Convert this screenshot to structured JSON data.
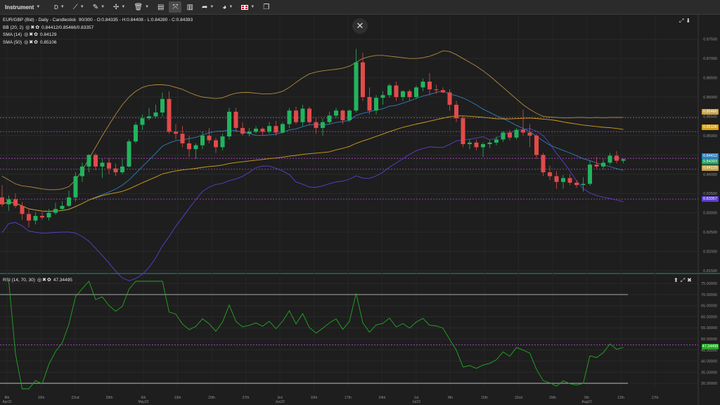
{
  "toolbar": {
    "instrument_label": "Instrument",
    "timeframe_label": "D"
  },
  "legend": {
    "main_title": "EUR/GBP (Bid) - Daily - Candlestick",
    "main_values": "90/300 - O:0.84335 - H:0.84408 - L:0.84280 - C:0.84393",
    "bb_label": "BB (20, 2)",
    "bb_values": "0.84412/0.85466/0.83357",
    "sma14_label": "SMA (14)",
    "sma14_value": "0.84129",
    "sma50_label": "SMA (50)",
    "sma50_value": "0.85106",
    "rsi_label": "RSI (14, 70, 30)",
    "rsi_value": "47.34495"
  },
  "price_tags": [
    {
      "value": "0.85466",
      "color": "#c7a24a"
    },
    {
      "value": "0.85106",
      "color": "#d4a017"
    },
    {
      "value": "0.84412",
      "color": "#2f7fbf"
    },
    {
      "value": "0.84393",
      "color": "#1e9e5a"
    },
    {
      "value": "0.84129",
      "color": "#c7a24a"
    },
    {
      "value": "0.83357",
      "color": "#5b3fd0"
    },
    {
      "value": "47.34495",
      "color": "#22aa22"
    }
  ],
  "price_axis_labels": [
    "0.87500",
    "0.87000",
    "0.86500",
    "0.86000",
    "0.85500",
    "0.85000",
    "0.84500",
    "0.84000",
    "0.83500",
    "0.83000",
    "0.82500",
    "0.82000",
    "0.81500"
  ],
  "rsi_axis_labels": [
    "75.00000",
    "70.00000",
    "65.00000",
    "60.00000",
    "55.00000",
    "50.00000",
    "45.00000",
    "40.00000",
    "35.00000",
    "30.00000"
  ],
  "x_axis_labels": [
    {
      "text": "8th",
      "sub": "Apr22"
    },
    {
      "text": "15th",
      "sub": ""
    },
    {
      "text": "22nd",
      "sub": ""
    },
    {
      "text": "29th",
      "sub": ""
    },
    {
      "text": "6th",
      "sub": "May22"
    },
    {
      "text": "13th",
      "sub": ""
    },
    {
      "text": "20th",
      "sub": ""
    },
    {
      "text": "27th",
      "sub": ""
    },
    {
      "text": "3rd",
      "sub": "Jun22"
    },
    {
      "text": "10th",
      "sub": ""
    },
    {
      "text": "17th",
      "sub": ""
    },
    {
      "text": "24th",
      "sub": ""
    },
    {
      "text": "1st",
      "sub": "Jul22"
    },
    {
      "text": "8th",
      "sub": ""
    },
    {
      "text": "15th",
      "sub": ""
    },
    {
      "text": "22nd",
      "sub": ""
    },
    {
      "text": "29th",
      "sub": ""
    },
    {
      "text": "5th",
      "sub": "Aug22"
    },
    {
      "text": "12th",
      "sub": ""
    },
    {
      "text": "17th",
      "sub": ""
    }
  ],
  "chart_data": {
    "type": "candlestick",
    "price_range": [
      0.815,
      0.8775
    ],
    "rsi_range": [
      27.5,
      76
    ],
    "horizontal_levels": [
      0.85466,
      0.85106,
      0.84412,
      0.84129,
      0.83357
    ],
    "rsi_levels": [
      70,
      30,
      47.3
    ],
    "candles": [
      {
        "o": 0.834,
        "h": 0.8372,
        "l": 0.8316,
        "c": 0.8322
      },
      {
        "o": 0.8322,
        "h": 0.8345,
        "l": 0.8305,
        "c": 0.8335
      },
      {
        "o": 0.8335,
        "h": 0.835,
        "l": 0.8312,
        "c": 0.8318
      },
      {
        "o": 0.8318,
        "h": 0.8328,
        "l": 0.8282,
        "c": 0.8297
      },
      {
        "o": 0.8297,
        "h": 0.831,
        "l": 0.8262,
        "c": 0.828
      },
      {
        "o": 0.828,
        "h": 0.8302,
        "l": 0.827,
        "c": 0.8292
      },
      {
        "o": 0.8292,
        "h": 0.8302,
        "l": 0.8282,
        "c": 0.8288
      },
      {
        "o": 0.8288,
        "h": 0.831,
        "l": 0.828,
        "c": 0.83
      },
      {
        "o": 0.83,
        "h": 0.8326,
        "l": 0.8295,
        "c": 0.831
      },
      {
        "o": 0.831,
        "h": 0.833,
        "l": 0.8305,
        "c": 0.8318
      },
      {
        "o": 0.8318,
        "h": 0.8358,
        "l": 0.8315,
        "c": 0.834
      },
      {
        "o": 0.834,
        "h": 0.8405,
        "l": 0.833,
        "c": 0.8395
      },
      {
        "o": 0.8395,
        "h": 0.843,
        "l": 0.838,
        "c": 0.842
      },
      {
        "o": 0.842,
        "h": 0.8452,
        "l": 0.8405,
        "c": 0.845
      },
      {
        "o": 0.845,
        "h": 0.8455,
        "l": 0.841,
        "c": 0.842
      },
      {
        "o": 0.842,
        "h": 0.844,
        "l": 0.839,
        "c": 0.843
      },
      {
        "o": 0.843,
        "h": 0.8442,
        "l": 0.84,
        "c": 0.8415
      },
      {
        "o": 0.8415,
        "h": 0.8428,
        "l": 0.8395,
        "c": 0.8405
      },
      {
        "o": 0.8405,
        "h": 0.844,
        "l": 0.84,
        "c": 0.842
      },
      {
        "o": 0.842,
        "h": 0.849,
        "l": 0.8418,
        "c": 0.8485
      },
      {
        "o": 0.8485,
        "h": 0.8535,
        "l": 0.848,
        "c": 0.8528
      },
      {
        "o": 0.8528,
        "h": 0.8555,
        "l": 0.8515,
        "c": 0.8545
      },
      {
        "o": 0.8545,
        "h": 0.8572,
        "l": 0.854,
        "c": 0.855
      },
      {
        "o": 0.855,
        "h": 0.858,
        "l": 0.8545,
        "c": 0.856
      },
      {
        "o": 0.856,
        "h": 0.8612,
        "l": 0.855,
        "c": 0.8595
      },
      {
        "o": 0.8595,
        "h": 0.8615,
        "l": 0.8505,
        "c": 0.851
      },
      {
        "o": 0.851,
        "h": 0.853,
        "l": 0.849,
        "c": 0.8505
      },
      {
        "o": 0.8505,
        "h": 0.8525,
        "l": 0.847,
        "c": 0.848
      },
      {
        "o": 0.848,
        "h": 0.85,
        "l": 0.8445,
        "c": 0.8465
      },
      {
        "o": 0.8465,
        "h": 0.848,
        "l": 0.844,
        "c": 0.8475
      },
      {
        "o": 0.8475,
        "h": 0.851,
        "l": 0.8465,
        "c": 0.85
      },
      {
        "o": 0.85,
        "h": 0.852,
        "l": 0.848,
        "c": 0.8488
      },
      {
        "o": 0.8488,
        "h": 0.8495,
        "l": 0.8455,
        "c": 0.847
      },
      {
        "o": 0.847,
        "h": 0.8505,
        "l": 0.8462,
        "c": 0.8498
      },
      {
        "o": 0.8498,
        "h": 0.8572,
        "l": 0.849,
        "c": 0.8562
      },
      {
        "o": 0.8562,
        "h": 0.8572,
        "l": 0.851,
        "c": 0.852
      },
      {
        "o": 0.852,
        "h": 0.8535,
        "l": 0.85,
        "c": 0.8505
      },
      {
        "o": 0.8505,
        "h": 0.852,
        "l": 0.8498,
        "c": 0.851
      },
      {
        "o": 0.851,
        "h": 0.8525,
        "l": 0.8505,
        "c": 0.8518
      },
      {
        "o": 0.8518,
        "h": 0.8522,
        "l": 0.8502,
        "c": 0.851
      },
      {
        "o": 0.851,
        "h": 0.8535,
        "l": 0.8505,
        "c": 0.8525
      },
      {
        "o": 0.8525,
        "h": 0.8538,
        "l": 0.85,
        "c": 0.8508
      },
      {
        "o": 0.8508,
        "h": 0.8535,
        "l": 0.8505,
        "c": 0.853
      },
      {
        "o": 0.853,
        "h": 0.8572,
        "l": 0.852,
        "c": 0.8565
      },
      {
        "o": 0.8565,
        "h": 0.8575,
        "l": 0.853,
        "c": 0.8535
      },
      {
        "o": 0.8535,
        "h": 0.858,
        "l": 0.8525,
        "c": 0.857
      },
      {
        "o": 0.857,
        "h": 0.8575,
        "l": 0.8528,
        "c": 0.8535
      },
      {
        "o": 0.8535,
        "h": 0.8545,
        "l": 0.8505,
        "c": 0.852
      },
      {
        "o": 0.852,
        "h": 0.8545,
        "l": 0.85,
        "c": 0.8535
      },
      {
        "o": 0.8535,
        "h": 0.8562,
        "l": 0.853,
        "c": 0.8552
      },
      {
        "o": 0.8552,
        "h": 0.8572,
        "l": 0.8545,
        "c": 0.8565
      },
      {
        "o": 0.8565,
        "h": 0.8568,
        "l": 0.853,
        "c": 0.854
      },
      {
        "o": 0.854,
        "h": 0.8568,
        "l": 0.8535,
        "c": 0.8565
      },
      {
        "o": 0.8565,
        "h": 0.8725,
        "l": 0.856,
        "c": 0.869
      },
      {
        "o": 0.869,
        "h": 0.8715,
        "l": 0.859,
        "c": 0.86
      },
      {
        "o": 0.86,
        "h": 0.8625,
        "l": 0.8555,
        "c": 0.8565
      },
      {
        "o": 0.8565,
        "h": 0.8605,
        "l": 0.8555,
        "c": 0.8598
      },
      {
        "o": 0.8598,
        "h": 0.8615,
        "l": 0.858,
        "c": 0.8605
      },
      {
        "o": 0.8605,
        "h": 0.8635,
        "l": 0.8598,
        "c": 0.863
      },
      {
        "o": 0.863,
        "h": 0.864,
        "l": 0.859,
        "c": 0.86
      },
      {
        "o": 0.86,
        "h": 0.8618,
        "l": 0.859,
        "c": 0.8615
      },
      {
        "o": 0.8615,
        "h": 0.862,
        "l": 0.859,
        "c": 0.86
      },
      {
        "o": 0.86,
        "h": 0.863,
        "l": 0.8595,
        "c": 0.8625
      },
      {
        "o": 0.8625,
        "h": 0.8648,
        "l": 0.8615,
        "c": 0.864
      },
      {
        "o": 0.864,
        "h": 0.8662,
        "l": 0.8605,
        "c": 0.862
      },
      {
        "o": 0.862,
        "h": 0.8632,
        "l": 0.8608,
        "c": 0.8618
      },
      {
        "o": 0.8618,
        "h": 0.8625,
        "l": 0.861,
        "c": 0.8612
      },
      {
        "o": 0.8612,
        "h": 0.862,
        "l": 0.8565,
        "c": 0.858
      },
      {
        "o": 0.858,
        "h": 0.859,
        "l": 0.8535,
        "c": 0.8545
      },
      {
        "o": 0.8545,
        "h": 0.855,
        "l": 0.847,
        "c": 0.8478
      },
      {
        "o": 0.8478,
        "h": 0.849,
        "l": 0.8465,
        "c": 0.8482
      },
      {
        "o": 0.8482,
        "h": 0.849,
        "l": 0.8462,
        "c": 0.847
      },
      {
        "o": 0.847,
        "h": 0.8482,
        "l": 0.8445,
        "c": 0.8478
      },
      {
        "o": 0.8478,
        "h": 0.8488,
        "l": 0.8468,
        "c": 0.8482
      },
      {
        "o": 0.8482,
        "h": 0.8498,
        "l": 0.8475,
        "c": 0.849
      },
      {
        "o": 0.849,
        "h": 0.8512,
        "l": 0.8484,
        "c": 0.8508
      },
      {
        "o": 0.8508,
        "h": 0.8515,
        "l": 0.8488,
        "c": 0.8495
      },
      {
        "o": 0.8495,
        "h": 0.852,
        "l": 0.849,
        "c": 0.8515
      },
      {
        "o": 0.8515,
        "h": 0.8568,
        "l": 0.85,
        "c": 0.8508
      },
      {
        "o": 0.8508,
        "h": 0.853,
        "l": 0.847,
        "c": 0.85
      },
      {
        "o": 0.85,
        "h": 0.8505,
        "l": 0.844,
        "c": 0.845
      },
      {
        "o": 0.845,
        "h": 0.8455,
        "l": 0.8395,
        "c": 0.8405
      },
      {
        "o": 0.8405,
        "h": 0.8422,
        "l": 0.8385,
        "c": 0.8395
      },
      {
        "o": 0.8395,
        "h": 0.8408,
        "l": 0.8362,
        "c": 0.838
      },
      {
        "o": 0.838,
        "h": 0.8398,
        "l": 0.8362,
        "c": 0.839
      },
      {
        "o": 0.839,
        "h": 0.84,
        "l": 0.8372,
        "c": 0.8378
      },
      {
        "o": 0.8378,
        "h": 0.8385,
        "l": 0.8365,
        "c": 0.8372
      },
      {
        "o": 0.8372,
        "h": 0.8392,
        "l": 0.8355,
        "c": 0.8375
      },
      {
        "o": 0.8375,
        "h": 0.8435,
        "l": 0.837,
        "c": 0.8425
      },
      {
        "o": 0.8425,
        "h": 0.8445,
        "l": 0.8415,
        "c": 0.842
      },
      {
        "o": 0.842,
        "h": 0.844,
        "l": 0.8412,
        "c": 0.843
      },
      {
        "o": 0.843,
        "h": 0.8455,
        "l": 0.8425,
        "c": 0.8448
      },
      {
        "o": 0.8448,
        "h": 0.846,
        "l": 0.8428,
        "c": 0.8435
      },
      {
        "o": 0.8435,
        "h": 0.8441,
        "l": 0.8428,
        "c": 0.8439
      }
    ],
    "bb_upper": [
      0.8395,
      0.8385,
      0.8375,
      0.837,
      0.8368,
      0.8365,
      0.8362,
      0.836,
      0.836,
      0.8362,
      0.8368,
      0.8385,
      0.841,
      0.844,
      0.847,
      0.85,
      0.8528,
      0.8555,
      0.858,
      0.86,
      0.8615,
      0.8625,
      0.863,
      0.8632,
      0.8632,
      0.863,
      0.8625,
      0.862,
      0.8612,
      0.8605,
      0.86,
      0.8598,
      0.8596,
      0.8598,
      0.8605,
      0.861,
      0.8612,
      0.8612,
      0.861,
      0.8608,
      0.8608,
      0.861,
      0.8615,
      0.8625,
      0.8638,
      0.865,
      0.866,
      0.8665,
      0.8668,
      0.867,
      0.8672,
      0.8675,
      0.868,
      0.869,
      0.87,
      0.8705,
      0.8708,
      0.8708,
      0.8706,
      0.8704,
      0.8702,
      0.87,
      0.87,
      0.8702,
      0.8706,
      0.8712,
      0.872,
      0.8718,
      0.871,
      0.87,
      0.869,
      0.868,
      0.8668,
      0.8655,
      0.864,
      0.8625,
      0.861,
      0.8595,
      0.858,
      0.8568,
      0.8558,
      0.855,
      0.8548,
      0.8547,
      0.8546,
      0.8546,
      0.8547,
      0.8547,
      0.8546,
      0.8547,
      0.8546,
      0.8547,
      0.8547,
      0.8547
    ]
  }
}
